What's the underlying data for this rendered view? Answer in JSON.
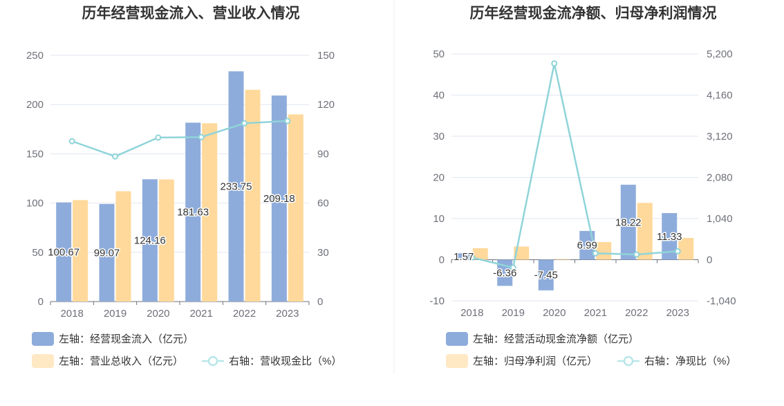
{
  "chart_data": [
    {
      "type": "bar",
      "title": "历年经营现金流入、营业收入情况",
      "categories": [
        "2018",
        "2019",
        "2020",
        "2021",
        "2022",
        "2023"
      ],
      "left_axis": {
        "ylim": [
          0,
          250
        ],
        "ticks": [
          "0",
          "50",
          "100",
          "150",
          "200",
          "250"
        ]
      },
      "right_axis": {
        "ylim": [
          0,
          150
        ],
        "ticks": [
          "0",
          "30",
          "60",
          "90",
          "120",
          "150"
        ]
      },
      "series": [
        {
          "name": "左轴：经营现金流入（亿元）",
          "kind": "bar",
          "axis": "left",
          "color": "#8eacdb",
          "values": [
            100.67,
            99.07,
            124.16,
            181.63,
            233.75,
            209.18
          ],
          "labels": [
            "100.67",
            "99.07",
            "124.16",
            "181.63",
            "233.75",
            "209.18"
          ]
        },
        {
          "name": "左轴：营业总收入（亿元）",
          "kind": "bar",
          "axis": "left",
          "color": "#ffd99b",
          "values": [
            103,
            112,
            124,
            181,
            215,
            190
          ]
        },
        {
          "name": "右轴：营收现金比（%）",
          "kind": "line",
          "axis": "right",
          "color": "#8fd4d9",
          "values": [
            97.7,
            88.4,
            99.9,
            100.2,
            108.6,
            110.0
          ]
        }
      ],
      "grid": true,
      "legend_position": "bottom-left"
    },
    {
      "type": "bar",
      "title": "历年经营现金流净额、归母净利润情况",
      "categories": [
        "2018",
        "2019",
        "2020",
        "2021",
        "2022",
        "2023"
      ],
      "left_axis": {
        "ylim": [
          -10,
          50
        ],
        "ticks": [
          "-10",
          "0",
          "10",
          "20",
          "30",
          "40",
          "50"
        ]
      },
      "right_axis": {
        "ylim": [
          -1040,
          5200
        ],
        "ticks": [
          "-1,040",
          "0",
          "1,040",
          "2,080",
          "3,120",
          "4,160",
          "5,200"
        ]
      },
      "series": [
        {
          "name": "左轴：经营活动现金流净额（亿元）",
          "kind": "bar",
          "axis": "left",
          "color": "#8eacdb",
          "values": [
            1.57,
            -6.36,
            -7.45,
            6.99,
            18.22,
            11.33
          ],
          "labels": [
            "1.57",
            "-6.36",
            "-7.45",
            "6.99",
            "18.22",
            "11.33"
          ]
        },
        {
          "name": "左轴：归母净利润（亿元）",
          "kind": "bar",
          "axis": "left",
          "color": "#ffd99b",
          "values": [
            2.8,
            3.2,
            0.15,
            4.3,
            13.8,
            5.3
          ]
        },
        {
          "name": "右轴：净现比（%）",
          "kind": "line",
          "axis": "right",
          "color": "#8fd4d9",
          "values": [
            56,
            -199,
            4960,
            162,
            132,
            214
          ]
        }
      ],
      "grid": true,
      "legend_position": "bottom-left"
    }
  ]
}
